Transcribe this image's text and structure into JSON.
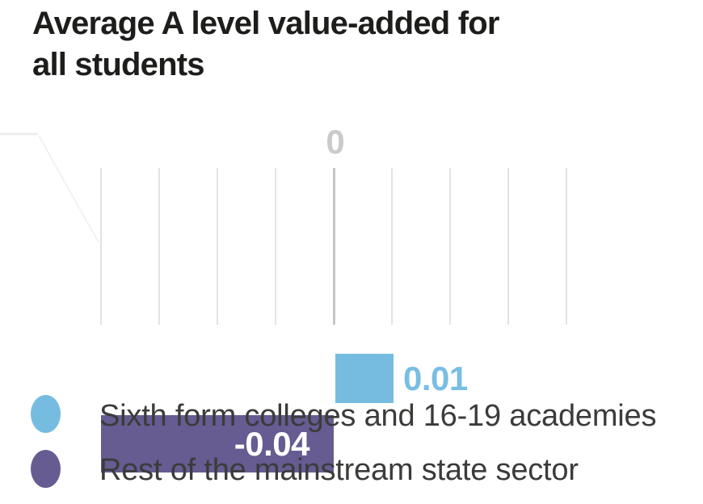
{
  "title": {
    "full": "Average A level value-added for all students",
    "line1": "Average A level value-added for",
    "line2": "all students"
  },
  "chart_data": {
    "type": "bar",
    "orientation": "horizontal",
    "title": "Average A level value-added for all students",
    "series": [
      {
        "name": "Sixth form colleges and 16-19 academies",
        "value": 0.01,
        "label": "0.01",
        "color": "#76bce0",
        "label_position": "outside-right",
        "label_color": "#79bee2"
      },
      {
        "name": "Rest of the mainstream state sector",
        "value": -0.04,
        "label": "-0.04",
        "color": "#665c92",
        "label_position": "inside-right",
        "label_color": "#ffffff"
      }
    ],
    "xlim": [
      -0.04,
      0.04
    ],
    "gridline_step": 0.01,
    "axis": {
      "zero_label": "0"
    },
    "grid": true,
    "legend_position": "bottom"
  },
  "legend": {
    "items": [
      {
        "label": "Sixth form colleges and 16-19 academies",
        "color": "#76bce0"
      },
      {
        "label": "Rest of the mainstream state sector",
        "color": "#665c92"
      }
    ]
  },
  "colors": {
    "title_text": "#1d1d1b",
    "legend_text": "#3b3b3a",
    "gridline": "#e3e3e3",
    "zero_line": "#c6c6c6",
    "zero_label": "#cacaca",
    "blue": "#76bce0",
    "purple": "#665c92"
  }
}
